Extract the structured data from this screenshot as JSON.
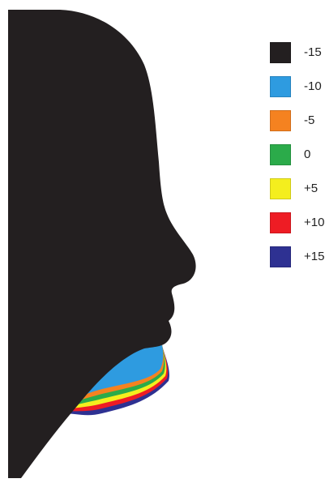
{
  "figure": {
    "silhouette_color": "#231f20",
    "legend": [
      {
        "label": "-15",
        "color": "#231f20"
      },
      {
        "label": "-10",
        "color": "#2e9be0"
      },
      {
        "label": "-5",
        "color": "#f58220"
      },
      {
        "label": "0",
        "color": "#2bab4a"
      },
      {
        "label": "+5",
        "color": "#f4ee1e"
      },
      {
        "label": "+10",
        "color": "#ee1c24"
      },
      {
        "label": "+15",
        "color": "#2e3192"
      }
    ]
  }
}
